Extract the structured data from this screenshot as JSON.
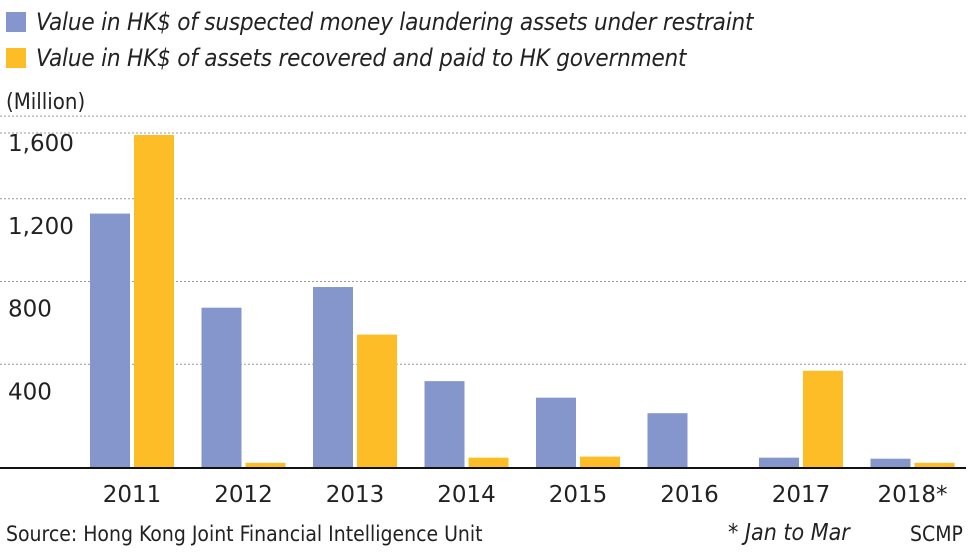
{
  "chart_data": {
    "type": "bar",
    "categories": [
      "2011",
      "2012",
      "2013",
      "2014",
      "2015",
      "2016",
      "2017",
      "2018*"
    ],
    "series": [
      {
        "name": "Value in HK$ of suspected money laundering assets under restraint",
        "color": "#8496cc",
        "values": [
          1230,
          775,
          875,
          420,
          340,
          265,
          50,
          45
        ]
      },
      {
        "name": "Value in HK$ of assets recovered and paid to HK government",
        "color": "#fdbd26",
        "values": [
          1610,
          25,
          645,
          50,
          55,
          0,
          470,
          25
        ]
      }
    ],
    "ylabel": "(Million)",
    "yticks": [
      400,
      800,
      1200,
      1600
    ],
    "ytick_labels": [
      "400",
      "800",
      "1,200",
      "1,600"
    ],
    "ylim": [
      0,
      1630
    ],
    "grid": true,
    "legend": "top-left"
  },
  "source": "Source: Hong Kong Joint Financial Intelligence Unit",
  "footnote": "* Jan to Mar",
  "credit": "SCMP"
}
